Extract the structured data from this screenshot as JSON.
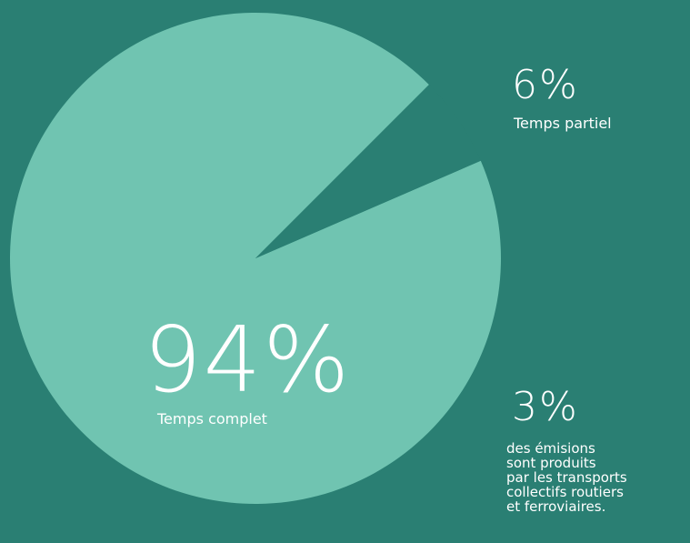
{
  "chart_data": {
    "type": "pie",
    "categories": [
      "Temps complet",
      "Temps partiel"
    ],
    "values": [
      94,
      6
    ],
    "value_labels": [
      "94%",
      "6%"
    ],
    "colors": [
      "#70c4b1",
      "#2a7f73"
    ],
    "annotation": {
      "label": "3%",
      "lines": [
        "des émisions",
        "sont produits",
        "par les transports",
        "collectifs routiers",
        "et ferroviaires."
      ]
    }
  }
}
